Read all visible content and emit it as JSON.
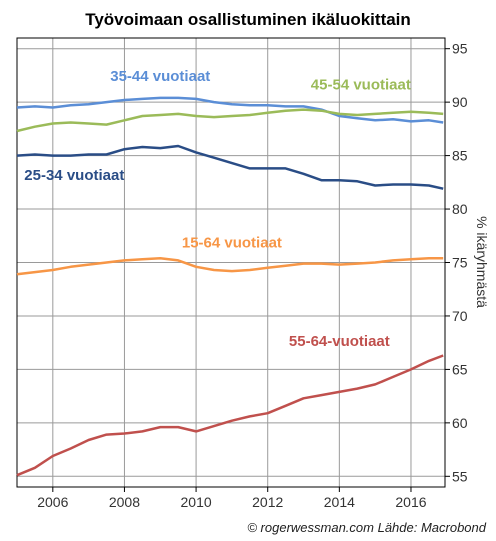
{
  "chart_data": {
    "type": "line",
    "title": "Työvoimaan osallistuminen ikäluokittain",
    "ylabel": "% ikäryhmästä",
    "credit": "© rogerwessman.com Lähde: Macrobond",
    "xlim": [
      2005.0,
      2016.95
    ],
    "ylim": [
      54,
      96
    ],
    "xticks": [
      2006,
      2008,
      2010,
      2012,
      2014,
      2016
    ],
    "xtick_labels": [
      "2006",
      "2008",
      "2010",
      "2012",
      "2014",
      "2016"
    ],
    "yticks": [
      55,
      60,
      65,
      70,
      75,
      80,
      85,
      90,
      95
    ],
    "ytick_labels": [
      "55",
      "60",
      "65",
      "70",
      "75",
      "80",
      "85",
      "90",
      "95"
    ],
    "grid": true,
    "series": [
      {
        "name": "35-44 vuotiaat",
        "color": "#5b8ed6",
        "label_pos": [
          2009.0,
          92.0
        ],
        "points": [
          [
            2005.0,
            89.5
          ],
          [
            2005.5,
            89.6
          ],
          [
            2006.0,
            89.5
          ],
          [
            2006.5,
            89.7
          ],
          [
            2007.0,
            89.8
          ],
          [
            2007.5,
            90.0
          ],
          [
            2008.0,
            90.2
          ],
          [
            2008.5,
            90.3
          ],
          [
            2009.0,
            90.4
          ],
          [
            2009.5,
            90.4
          ],
          [
            2010.0,
            90.3
          ],
          [
            2010.5,
            90.0
          ],
          [
            2011.0,
            89.8
          ],
          [
            2011.5,
            89.7
          ],
          [
            2012.0,
            89.7
          ],
          [
            2012.5,
            89.6
          ],
          [
            2013.0,
            89.6
          ],
          [
            2013.5,
            89.3
          ],
          [
            2014.0,
            88.7
          ],
          [
            2014.5,
            88.5
          ],
          [
            2015.0,
            88.3
          ],
          [
            2015.5,
            88.4
          ],
          [
            2016.0,
            88.2
          ],
          [
            2016.5,
            88.3
          ],
          [
            2016.9,
            88.1
          ]
        ]
      },
      {
        "name": "45-54 vuotiaat",
        "color": "#9bbb59",
        "label_pos": [
          2014.6,
          91.2
        ],
        "points": [
          [
            2005.0,
            87.3
          ],
          [
            2005.5,
            87.7
          ],
          [
            2006.0,
            88.0
          ],
          [
            2006.5,
            88.1
          ],
          [
            2007.0,
            88.0
          ],
          [
            2007.5,
            87.9
          ],
          [
            2008.0,
            88.3
          ],
          [
            2008.5,
            88.7
          ],
          [
            2009.0,
            88.8
          ],
          [
            2009.5,
            88.9
          ],
          [
            2010.0,
            88.7
          ],
          [
            2010.5,
            88.6
          ],
          [
            2011.0,
            88.7
          ],
          [
            2011.5,
            88.8
          ],
          [
            2012.0,
            89.0
          ],
          [
            2012.5,
            89.2
          ],
          [
            2013.0,
            89.3
          ],
          [
            2013.5,
            89.2
          ],
          [
            2014.0,
            88.9
          ],
          [
            2014.5,
            88.8
          ],
          [
            2015.0,
            88.9
          ],
          [
            2015.5,
            89.0
          ],
          [
            2016.0,
            89.1
          ],
          [
            2016.5,
            89.0
          ],
          [
            2016.9,
            88.9
          ]
        ]
      },
      {
        "name": "25-34 vuotiaat",
        "color": "#2a4d86",
        "label_pos": [
          2006.6,
          82.7
        ],
        "points": [
          [
            2005.0,
            85.0
          ],
          [
            2005.5,
            85.1
          ],
          [
            2006.0,
            85.0
          ],
          [
            2006.5,
            85.0
          ],
          [
            2007.0,
            85.1
          ],
          [
            2007.5,
            85.1
          ],
          [
            2008.0,
            85.6
          ],
          [
            2008.5,
            85.8
          ],
          [
            2009.0,
            85.7
          ],
          [
            2009.5,
            85.9
          ],
          [
            2010.0,
            85.3
          ],
          [
            2010.5,
            84.8
          ],
          [
            2011.0,
            84.3
          ],
          [
            2011.5,
            83.8
          ],
          [
            2012.0,
            83.8
          ],
          [
            2012.5,
            83.8
          ],
          [
            2013.0,
            83.3
          ],
          [
            2013.5,
            82.7
          ],
          [
            2014.0,
            82.7
          ],
          [
            2014.5,
            82.6
          ],
          [
            2015.0,
            82.2
          ],
          [
            2015.5,
            82.3
          ],
          [
            2016.0,
            82.3
          ],
          [
            2016.5,
            82.2
          ],
          [
            2016.9,
            81.9
          ]
        ]
      },
      {
        "name": "15-64 vuotiaat",
        "color": "#f79646",
        "label_pos": [
          2011.0,
          76.4
        ],
        "points": [
          [
            2005.0,
            73.9
          ],
          [
            2005.5,
            74.1
          ],
          [
            2006.0,
            74.3
          ],
          [
            2006.5,
            74.6
          ],
          [
            2007.0,
            74.8
          ],
          [
            2007.5,
            75.0
          ],
          [
            2008.0,
            75.2
          ],
          [
            2008.5,
            75.3
          ],
          [
            2009.0,
            75.4
          ],
          [
            2009.5,
            75.2
          ],
          [
            2010.0,
            74.6
          ],
          [
            2010.5,
            74.3
          ],
          [
            2011.0,
            74.2
          ],
          [
            2011.5,
            74.3
          ],
          [
            2012.0,
            74.5
          ],
          [
            2012.5,
            74.7
          ],
          [
            2013.0,
            74.9
          ],
          [
            2013.5,
            74.9
          ],
          [
            2014.0,
            74.8
          ],
          [
            2014.5,
            74.9
          ],
          [
            2015.0,
            75.0
          ],
          [
            2015.5,
            75.2
          ],
          [
            2016.0,
            75.3
          ],
          [
            2016.5,
            75.4
          ],
          [
            2016.9,
            75.4
          ]
        ]
      },
      {
        "name": "55-64-vuotiaat",
        "color": "#c0504d",
        "label_pos": [
          2014.0,
          67.2
        ],
        "points": [
          [
            2005.0,
            55.1
          ],
          [
            2005.5,
            55.8
          ],
          [
            2006.0,
            56.9
          ],
          [
            2006.5,
            57.6
          ],
          [
            2007.0,
            58.4
          ],
          [
            2007.5,
            58.9
          ],
          [
            2008.0,
            59.0
          ],
          [
            2008.5,
            59.2
          ],
          [
            2009.0,
            59.6
          ],
          [
            2009.5,
            59.6
          ],
          [
            2010.0,
            59.2
          ],
          [
            2010.5,
            59.7
          ],
          [
            2011.0,
            60.2
          ],
          [
            2011.5,
            60.6
          ],
          [
            2012.0,
            60.9
          ],
          [
            2012.5,
            61.6
          ],
          [
            2013.0,
            62.3
          ],
          [
            2013.5,
            62.6
          ],
          [
            2014.0,
            62.9
          ],
          [
            2014.5,
            63.2
          ],
          [
            2015.0,
            63.6
          ],
          [
            2015.5,
            64.3
          ],
          [
            2016.0,
            65.0
          ],
          [
            2016.5,
            65.8
          ],
          [
            2016.9,
            66.3
          ]
        ]
      }
    ]
  }
}
